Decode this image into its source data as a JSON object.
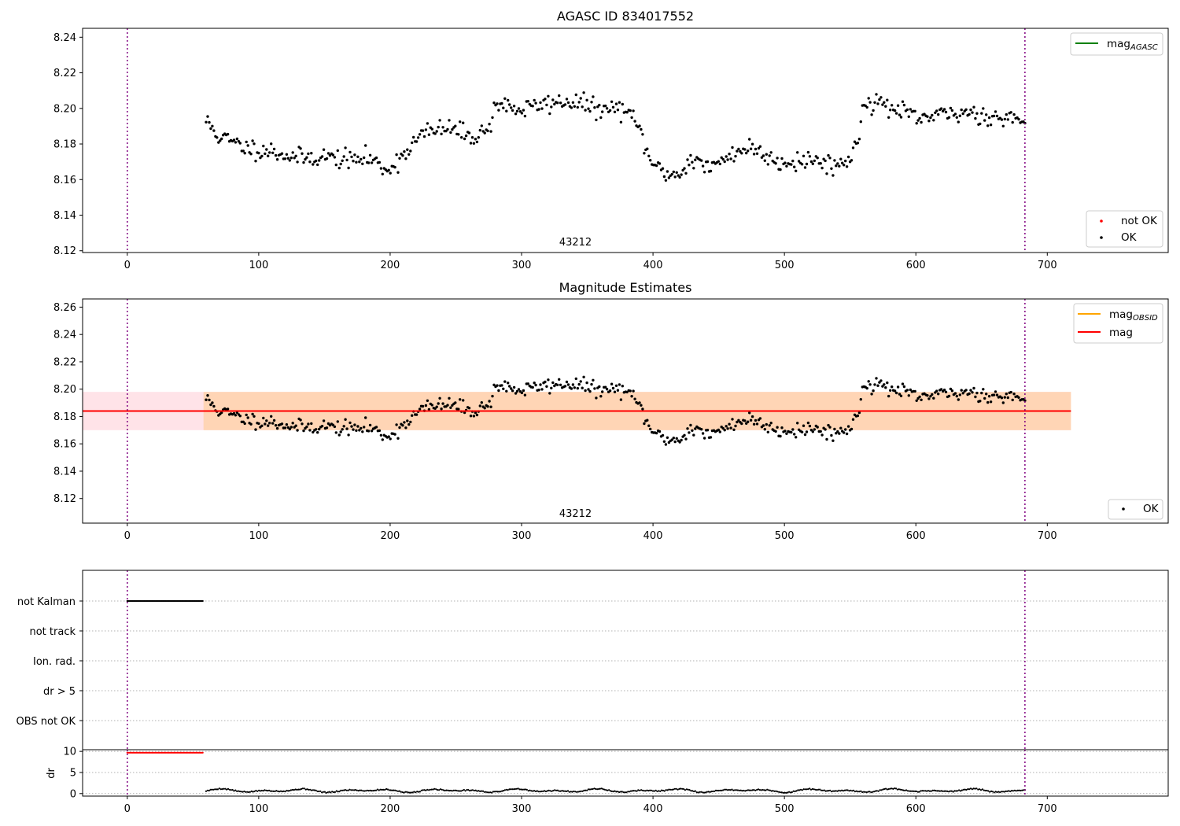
{
  "chart_data": [
    {
      "type": "scatter",
      "title": "AGASC ID 834017552",
      "xlim": [
        -34,
        792
      ],
      "ylim": [
        8.119,
        8.245
      ],
      "x_ticks": [
        0,
        100,
        200,
        300,
        400,
        500,
        600,
        700
      ],
      "y_ticks": [
        8.12,
        8.14,
        8.16,
        8.18,
        8.2,
        8.22,
        8.24
      ],
      "vlines": [
        0,
        683
      ],
      "annotation": {
        "text": "43212",
        "x": 341
      },
      "legend_lines": [
        {
          "label": "mag",
          "sub": "AGASC",
          "color": "#008000"
        }
      ],
      "legend_points": [
        {
          "label": "not OK",
          "color": "#ff0000"
        },
        {
          "label": "OK",
          "color": "#000000"
        }
      ],
      "trend": {
        "knots": [
          [
            60,
            8.193
          ],
          [
            70,
            8.184
          ],
          [
            90,
            8.178
          ],
          [
            110,
            8.176
          ],
          [
            130,
            8.172
          ],
          [
            150,
            8.173
          ],
          [
            170,
            8.171
          ],
          [
            185,
            8.172
          ],
          [
            195,
            8.166
          ],
          [
            203,
            8.168
          ],
          [
            212,
            8.176
          ],
          [
            225,
            8.186
          ],
          [
            245,
            8.189
          ],
          [
            262,
            8.184
          ],
          [
            275,
            8.188
          ],
          [
            280,
            8.203
          ],
          [
            300,
            8.199
          ],
          [
            320,
            8.203
          ],
          [
            340,
            8.204
          ],
          [
            360,
            8.199
          ],
          [
            378,
            8.2
          ],
          [
            390,
            8.188
          ],
          [
            397,
            8.172
          ],
          [
            405,
            8.165
          ],
          [
            420,
            8.162
          ],
          [
            428,
            8.172
          ],
          [
            445,
            8.166
          ],
          [
            460,
            8.175
          ],
          [
            475,
            8.178
          ],
          [
            495,
            8.17
          ],
          [
            520,
            8.171
          ],
          [
            545,
            8.168
          ],
          [
            556,
            8.18
          ],
          [
            560,
            8.205
          ],
          [
            580,
            8.201
          ],
          [
            600,
            8.194
          ],
          [
            620,
            8.196
          ],
          [
            640,
            8.198
          ],
          [
            660,
            8.195
          ],
          [
            683,
            8.194
          ]
        ],
        "x_start": 60,
        "x_end": 683,
        "count": 530,
        "noise": 0.0045,
        "seed": 11
      }
    },
    {
      "type": "scatter",
      "title": "Magnitude Estimates",
      "xlim": [
        -34,
        792
      ],
      "ylim": [
        8.102,
        8.266
      ],
      "x_ticks": [
        0,
        100,
        200,
        300,
        400,
        500,
        600,
        700
      ],
      "y_ticks": [
        8.12,
        8.14,
        8.16,
        8.18,
        8.2,
        8.22,
        8.24,
        8.26
      ],
      "vlines": [
        0,
        683
      ],
      "annotation": {
        "text": "43212",
        "x": 341
      },
      "band_outer": {
        "x": [
          -34,
          718
        ],
        "y": [
          8.17,
          8.198
        ],
        "color": "#ffc0cb"
      },
      "band_inner": {
        "x": [
          58,
          718
        ],
        "y": [
          8.17,
          8.198
        ],
        "color": "#ffa500"
      },
      "mag_line": {
        "x": [
          -34,
          718
        ],
        "y": 8.184,
        "color": "#ff0000"
      },
      "legend_lines": [
        {
          "label": "mag",
          "sub": "OBSID",
          "color": "#ffa500"
        },
        {
          "label": "mag",
          "sub": "",
          "color": "#ff0000"
        }
      ],
      "legend_points": [
        {
          "label": "OK",
          "color": "#000000"
        }
      ]
    },
    {
      "type": "scatter",
      "title": "",
      "xlim": [
        -34,
        792
      ],
      "categories": [
        "not Kalman",
        "not track",
        "Ion. rad.",
        "dr > 5",
        "OBS not OK"
      ],
      "flags": [
        {
          "category": "not Kalman",
          "x_range": [
            0,
            58
          ],
          "color": "#000000"
        }
      ],
      "vlines": [
        0,
        683
      ]
    },
    {
      "type": "scatter",
      "title": "",
      "xlim": [
        -34,
        792
      ],
      "ylim": [
        -0.6,
        10.4
      ],
      "x_ticks": [
        0,
        100,
        200,
        300,
        400,
        500,
        600,
        700
      ],
      "y_ticks": [
        0,
        5,
        10
      ],
      "ylabel": "dr",
      "vlines": [
        0,
        683
      ],
      "clipped": {
        "x_range": [
          0,
          58
        ],
        "y": 9.7,
        "color": "#ff0000"
      },
      "dr": {
        "x_start": 60,
        "x_end": 683,
        "base": 0.7,
        "amp": 0.45,
        "count": 560,
        "seed": 5
      }
    }
  ]
}
